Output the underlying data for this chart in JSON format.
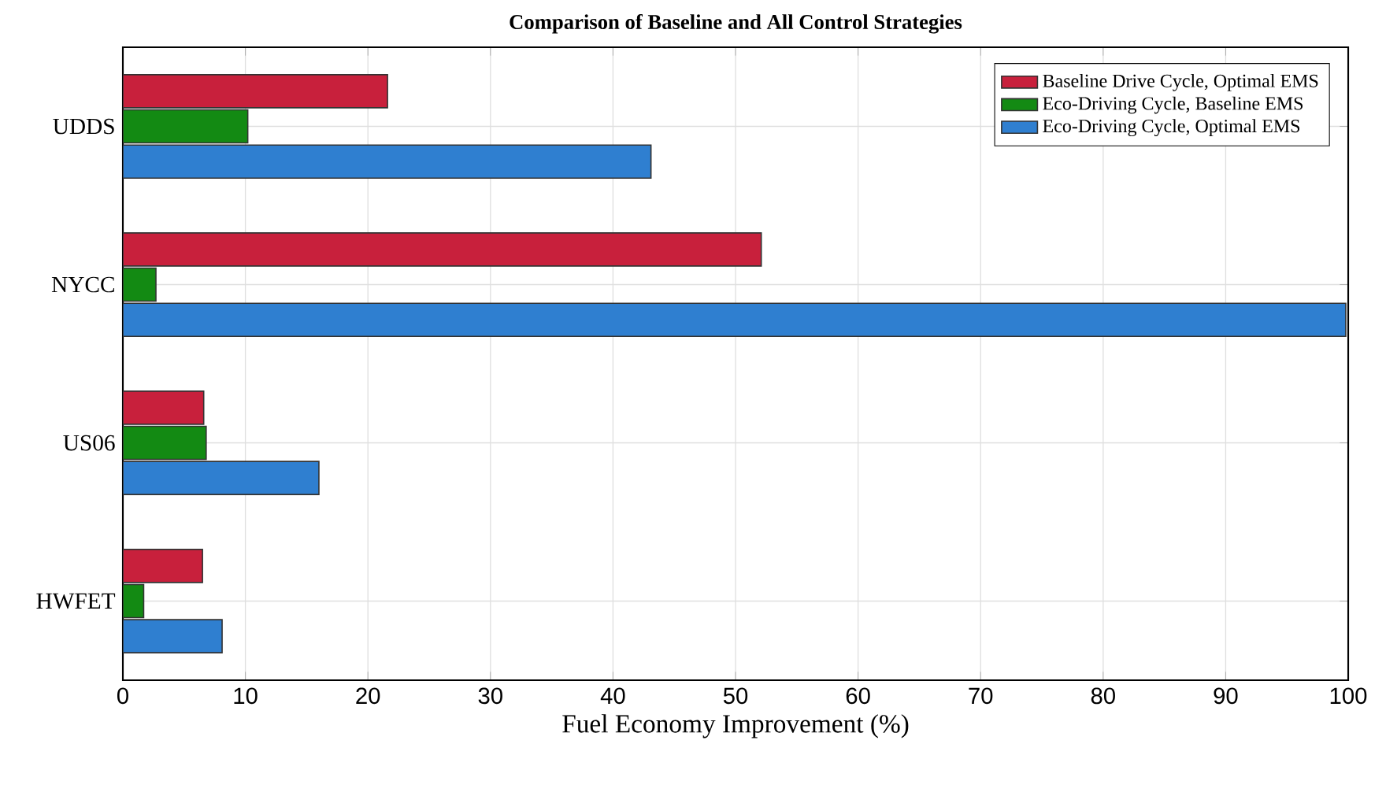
{
  "chart_data": {
    "type": "bar",
    "orientation": "horizontal",
    "title": "Comparison of Baseline and All Control Strategies",
    "xlabel": "Fuel Economy Improvement (%)",
    "categories": [
      "UDDS",
      "NYCC",
      "US06",
      "HWFET"
    ],
    "series": [
      {
        "name": "Baseline Drive Cycle, Optimal EMS",
        "color": "#c8203c",
        "values": [
          21.6,
          52.1,
          6.6,
          6.5
        ]
      },
      {
        "name": "Eco-Driving Cycle, Baseline EMS",
        "color": "#138a13",
        "values": [
          10.2,
          2.7,
          6.8,
          1.7
        ]
      },
      {
        "name": "Eco-Driving Cycle, Optimal EMS",
        "color": "#2f7fd0",
        "values": [
          43.1,
          99.8,
          16.0,
          8.1
        ]
      }
    ],
    "xlim": [
      0,
      100
    ],
    "xticks": [
      0,
      10,
      20,
      30,
      40,
      50,
      60,
      70,
      80,
      90,
      100
    ],
    "grid": true,
    "legend": "top right"
  }
}
